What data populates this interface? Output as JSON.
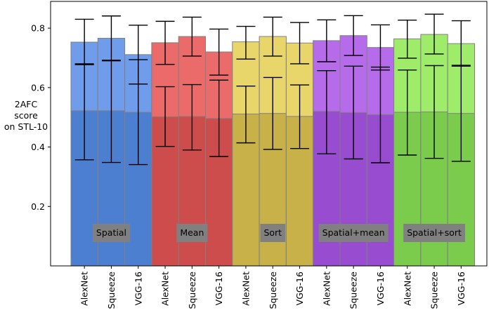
{
  "chart_data": {
    "type": "bar",
    "ylabel": [
      "2AFC",
      "score",
      "on STL-10"
    ],
    "ylim": [
      0.0,
      0.89
    ],
    "yticks": [
      0.2,
      0.4,
      0.6,
      0.8
    ],
    "ytick_labels": [
      "0.2",
      "0.4",
      "0.6",
      "0.8"
    ],
    "categories": [
      "AlexNet",
      "Squeeze",
      "VGG-16",
      "AlexNet",
      "Squeeze",
      "VGG-16",
      "AlexNet",
      "Squeeze",
      "VGG-16",
      "AlexNet",
      "Squeeze",
      "VGG-16",
      "AlexNet",
      "Squeeze",
      "VGG-16"
    ],
    "groups": [
      {
        "label": "Spatial",
        "light": "#6f9ceb",
        "dark": "#4c7fcf"
      },
      {
        "label": "Mean",
        "light": "#eb6b6b",
        "dark": "#cd4c4c"
      },
      {
        "label": "Sort",
        "light": "#e8d66b",
        "dark": "#c9b14a"
      },
      {
        "label": "Spatial+mean",
        "light": "#b56bea",
        "dark": "#984ccf"
      },
      {
        "label": "Spatial+sort",
        "light": "#9feb6a",
        "dark": "#7bcc4c"
      }
    ],
    "series": [
      {
        "name": "upper",
        "values": [
          0.753,
          0.766,
          0.711,
          0.751,
          0.772,
          0.72,
          0.754,
          0.772,
          0.75,
          0.758,
          0.775,
          0.735,
          0.764,
          0.779,
          0.748
        ],
        "err_low": [
          0.68,
          0.69,
          0.612,
          0.678,
          0.706,
          0.642,
          0.696,
          0.706,
          0.68,
          0.687,
          0.708,
          0.659,
          0.699,
          0.713,
          0.672
        ],
        "err_high": [
          0.83,
          0.841,
          0.81,
          0.823,
          0.837,
          0.797,
          0.806,
          0.837,
          0.819,
          0.828,
          0.842,
          0.811,
          0.827,
          0.847,
          0.825
        ]
      },
      {
        "name": "lower",
        "values": [
          0.522,
          0.522,
          0.517,
          0.502,
          0.503,
          0.496,
          0.511,
          0.513,
          0.503,
          0.52,
          0.516,
          0.509,
          0.517,
          0.518,
          0.513
        ],
        "err_low": [
          0.357,
          0.348,
          0.341,
          0.402,
          0.39,
          0.368,
          0.414,
          0.392,
          0.395,
          0.377,
          0.36,
          0.347,
          0.373,
          0.362,
          0.352
        ],
        "err_high": [
          0.677,
          0.692,
          0.694,
          0.603,
          0.61,
          0.625,
          0.605,
          0.634,
          0.609,
          0.657,
          0.672,
          0.669,
          0.659,
          0.674,
          0.675
        ]
      }
    ]
  }
}
